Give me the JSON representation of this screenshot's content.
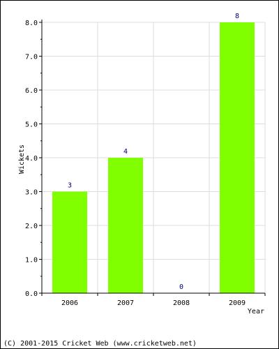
{
  "chart_data": {
    "type": "bar",
    "categories": [
      "2006",
      "2007",
      "2008",
      "2009"
    ],
    "values": [
      3,
      4,
      0,
      8
    ],
    "value_labels": [
      "3",
      "4",
      "0",
      "8"
    ],
    "xlabel": "Year",
    "ylabel": "Wickets",
    "ylim": [
      0,
      8
    ],
    "yticks": [
      "0.0",
      "1.0",
      "2.0",
      "3.0",
      "4.0",
      "5.0",
      "6.0",
      "7.0",
      "8.0"
    ],
    "grid": true,
    "legend": "none",
    "bar_color": "#80ff00",
    "value_label_color": "#000080"
  },
  "footer": {
    "copyright": "(C) 2001-2015 Cricket Web (www.cricketweb.net)"
  }
}
